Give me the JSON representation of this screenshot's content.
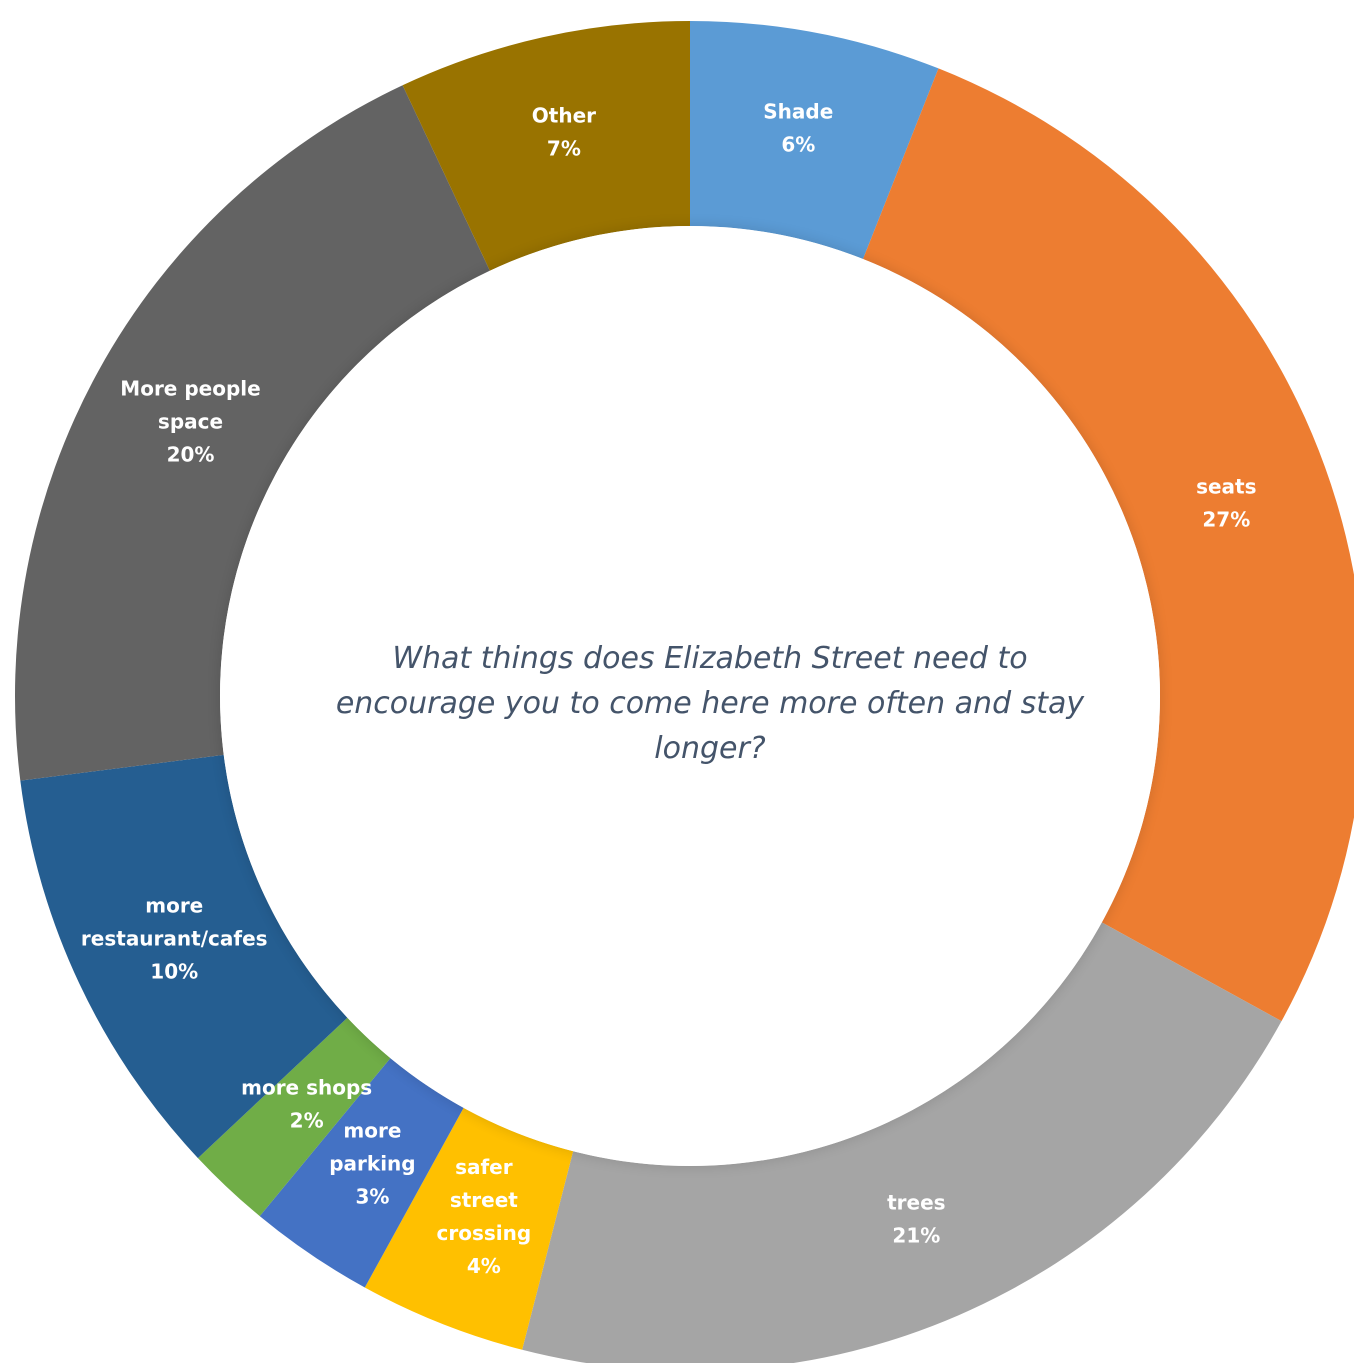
{
  "chart_data": {
    "type": "pie",
    "variant": "doughnut",
    "title": "What things does Elizabeth Street need to encourage you to come here more often and stay longer?",
    "slices": [
      {
        "label": "Shade",
        "percent_label": "6%",
        "value": 6,
        "color": "#5b9bd5"
      },
      {
        "label": "seats",
        "percent_label": "27%",
        "value": 27,
        "color": "#ed7d31"
      },
      {
        "label": "trees",
        "percent_label": "21%",
        "value": 21,
        "color": "#a5a5a5"
      },
      {
        "label": "safer street crossing",
        "percent_label": "4%",
        "value": 4,
        "color": "#ffc000"
      },
      {
        "label": "more parking",
        "percent_label": "3%",
        "value": 3,
        "color": "#4472c4"
      },
      {
        "label": "more shops",
        "percent_label": "2%",
        "value": 2,
        "color": "#70ad47"
      },
      {
        "label": "more restaurant/cafes",
        "percent_label": "10%",
        "value": 10,
        "color": "#255e91"
      },
      {
        "label": "More people space",
        "percent_label": "20%",
        "value": 20,
        "color": "#636363"
      },
      {
        "label": "Other",
        "percent_label": "7%",
        "value": 7,
        "color": "#997300"
      }
    ],
    "start_at": "top",
    "direction": "clockwise",
    "legend": "none"
  }
}
